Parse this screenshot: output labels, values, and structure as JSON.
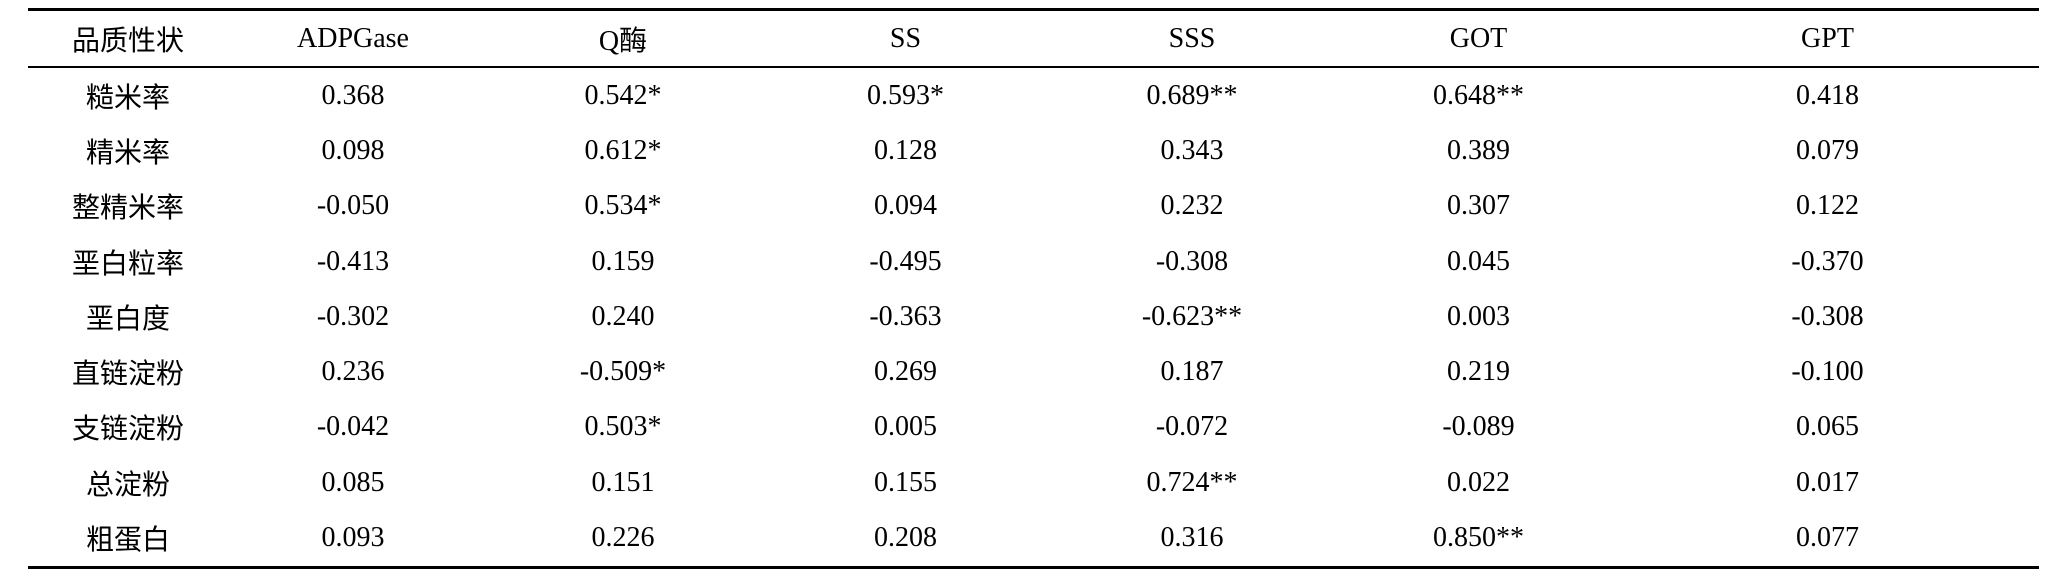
{
  "table": {
    "headers": [
      "品质性状",
      "ADPGase",
      "Q酶",
      "SS",
      "SSS",
      "GOT",
      "GPT"
    ],
    "rows": [
      [
        "糙米率",
        "0.368",
        "0.542*",
        "0.593*",
        "0.689**",
        "0.648**",
        "0.418"
      ],
      [
        "精米率",
        "0.098",
        "0.612*",
        "0.128",
        "0.343",
        "0.389",
        "0.079"
      ],
      [
        "整精米率",
        "-0.050",
        "0.534*",
        "0.094",
        "0.232",
        "0.307",
        "0.122"
      ],
      [
        "垩白粒率",
        "-0.413",
        "0.159",
        "-0.495",
        "-0.308",
        "0.045",
        "-0.370"
      ],
      [
        "垩白度",
        "-0.302",
        "0.240",
        "-0.363",
        "-0.623**",
        "0.003",
        "-0.308"
      ],
      [
        "直链淀粉",
        "0.236",
        "-0.509*",
        "0.269",
        "0.187",
        "0.219",
        "-0.100"
      ],
      [
        "支链淀粉",
        "-0.042",
        "0.503*",
        "0.005",
        "-0.072",
        "-0.089",
        "0.065"
      ],
      [
        "总淀粉",
        "0.085",
        "0.151",
        "0.155",
        "0.724**",
        "0.022",
        "0.017"
      ],
      [
        "粗蛋白",
        "0.093",
        "0.226",
        "0.208",
        "0.316",
        "0.850**",
        "0.077"
      ]
    ]
  }
}
